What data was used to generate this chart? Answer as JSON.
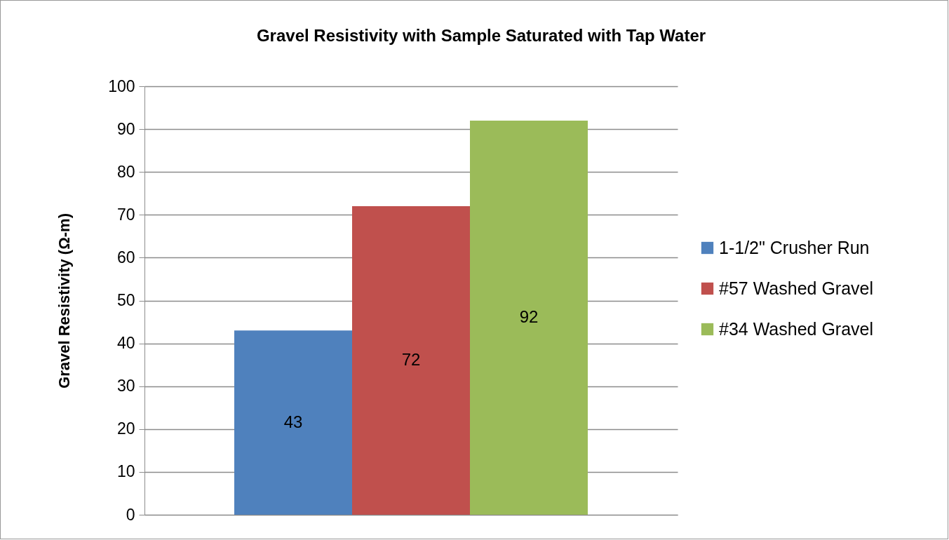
{
  "chart_data": {
    "type": "bar",
    "title": "Gravel Resistivity with Sample Saturated with Tap Water",
    "ylabel": "Gravel Resistivity (Ω-m)",
    "categories": [
      null
    ],
    "series": [
      {
        "name": "1-1/2\" Crusher Run",
        "color": "#4f81bd",
        "values": [
          43
        ]
      },
      {
        "name": "#57 Washed Gravel",
        "color": "#c0504d",
        "values": [
          72
        ]
      },
      {
        "name": "#34 Washed Gravel",
        "color": "#9bbb59",
        "values": [
          92
        ]
      }
    ],
    "ylim": [
      0,
      100
    ],
    "yticks": [
      0,
      10,
      20,
      30,
      40,
      50,
      60,
      70,
      80,
      90,
      100
    ],
    "grid": "y",
    "legend": "right",
    "data_labels": true
  }
}
